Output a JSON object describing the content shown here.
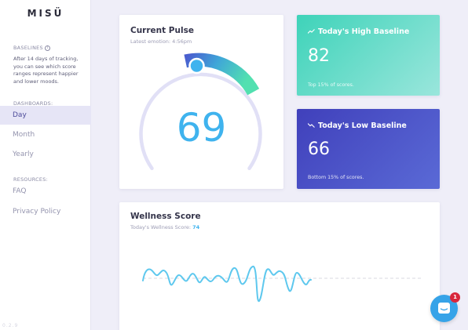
{
  "app": {
    "logo": "MISÜ",
    "version": "0.2.9"
  },
  "sidebar": {
    "baselines_label": "BASELINES",
    "baselines_desc": "After 14 days of tracking, you can see which score ranges represent happier and lower moods.",
    "dashboards_label": "DASHBOARDS:",
    "dashboards": [
      {
        "label": "Day",
        "active": true
      },
      {
        "label": "Month",
        "active": false
      },
      {
        "label": "Yearly",
        "active": false
      }
    ],
    "resources_label": "RESOURCES:",
    "resources": [
      {
        "label": "FAQ"
      },
      {
        "label": "Privacy Policy"
      }
    ]
  },
  "pulse": {
    "title": "Current Pulse",
    "subtitle": "Latest emotion: 4:56pm",
    "value": "69",
    "level": 0.69
  },
  "high": {
    "title": "Today's High Baseline",
    "value": "82",
    "note": "Top 15% of scores.",
    "icon": "trending-up-icon"
  },
  "low": {
    "title": "Today's Low Baseline",
    "value": "66",
    "note": "Bottom 15% of scores.",
    "icon": "trending-down-icon"
  },
  "wellness": {
    "title": "Wellness Score",
    "subtitle_prefix": "Today's Wellness Score: ",
    "score": "74"
  },
  "chat": {
    "badge": "1",
    "icon": "chat-bubble-icon"
  },
  "colors": {
    "accent_blue": "#3fb3ee",
    "teal": "#3ed3b9",
    "indigo": "#4040bb",
    "badge_red": "#d8263b"
  }
}
